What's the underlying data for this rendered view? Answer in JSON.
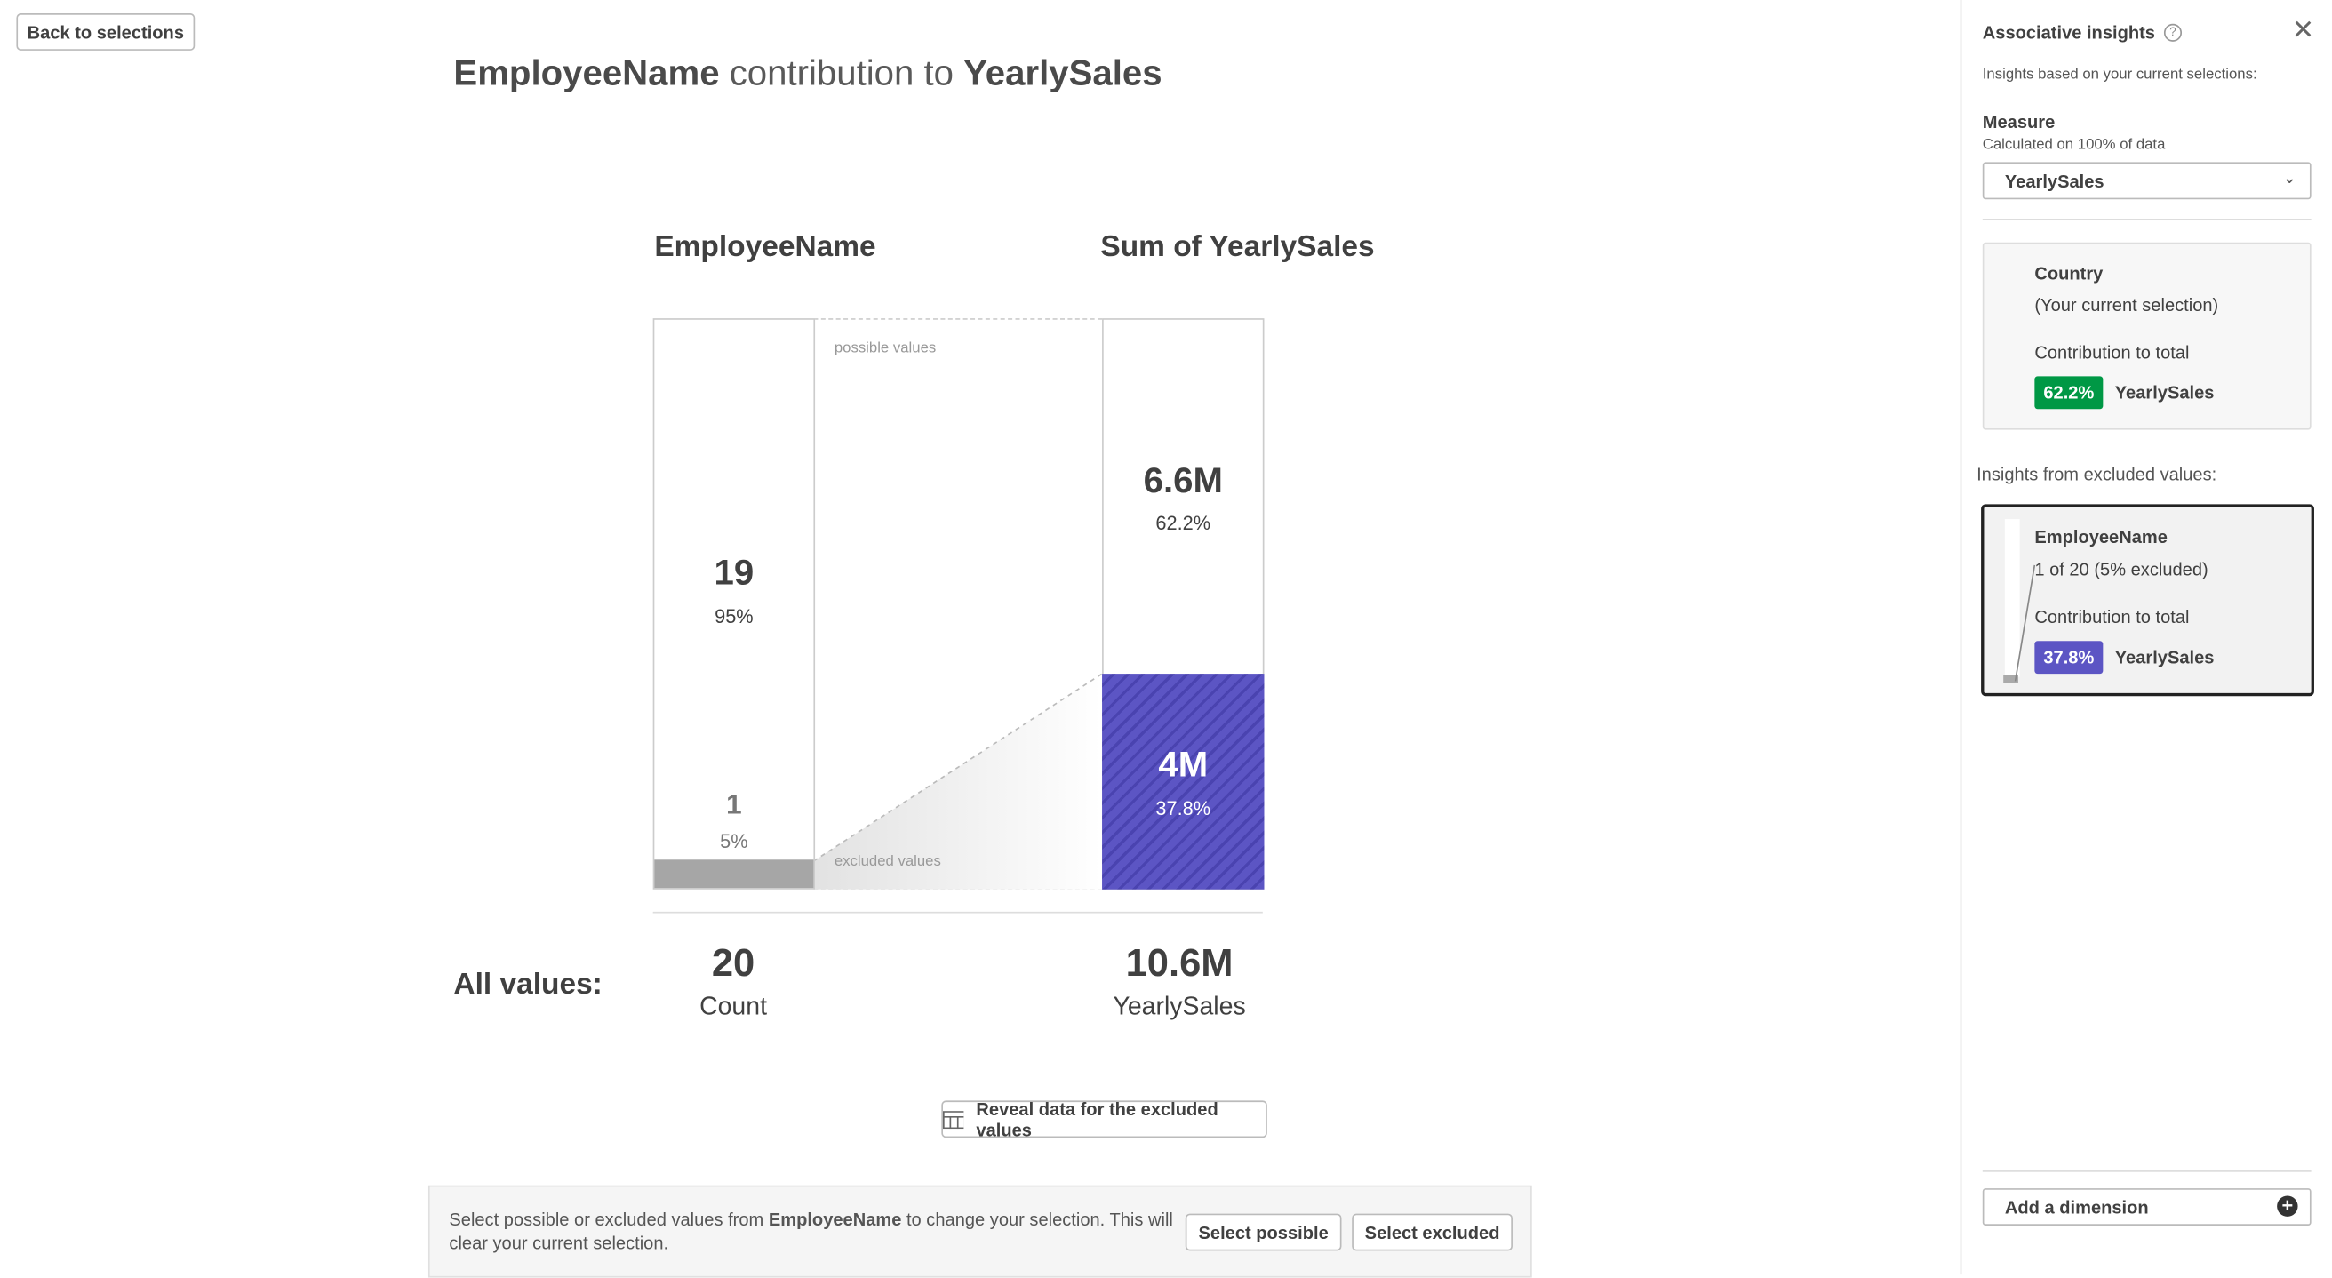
{
  "toolbar": {
    "back_label": "Back to selections"
  },
  "title": {
    "dimension": "EmployeeName",
    "middle": " contribution to ",
    "measure": "YearlySales"
  },
  "chart": {
    "dimension_header": "EmployeeName",
    "measure_header": "Sum of YearlySales",
    "possible_label": "possible values",
    "excluded_label": "excluded values",
    "possible_count": "19",
    "possible_count_pct": "95%",
    "excluded_count": "1",
    "excluded_count_pct": "5%",
    "possible_sum": "6.6M",
    "possible_sum_pct": "62.2%",
    "excluded_sum": "4M",
    "excluded_sum_pct": "37.8%",
    "excluded_count_fraction": 0.05,
    "excluded_sum_fraction": 0.378,
    "colors": {
      "excluded_count": "#a6a6a6",
      "excluded_sum": "#5c55c4"
    }
  },
  "all_values": {
    "label": "All values:",
    "count": "20",
    "count_label": "Count",
    "sum": "10.6M",
    "sum_label": "YearlySales"
  },
  "reveal_button": "Reveal data for the excluded values",
  "footer": {
    "text_pre": "Select possible or excluded values from ",
    "field": "EmployeeName",
    "text_post": " to change your selection. This will clear your current selection.",
    "select_possible": "Select possible",
    "select_excluded": "Select excluded"
  },
  "panel": {
    "title": "Associative insights",
    "subtitle": "Insights based on your current selections:",
    "measure_label": "Measure",
    "measure_note": "Calculated on 100% of data",
    "measure_value": "YearlySales",
    "current_card": {
      "field": "Country",
      "note": "(Your current selection)",
      "contribution_label": "Contribution to total",
      "badge": "62.2%",
      "badge_color": "#009845",
      "measure": "YearlySales"
    },
    "excluded_heading": "Insights from excluded values:",
    "excluded_card": {
      "field": "EmployeeName",
      "note": "1 of 20 (5% excluded)",
      "contribution_label": "Contribution to total",
      "badge": "37.8%",
      "badge_color": "#5c55c4",
      "measure": "YearlySales"
    },
    "add_dimension": "Add a dimension"
  }
}
